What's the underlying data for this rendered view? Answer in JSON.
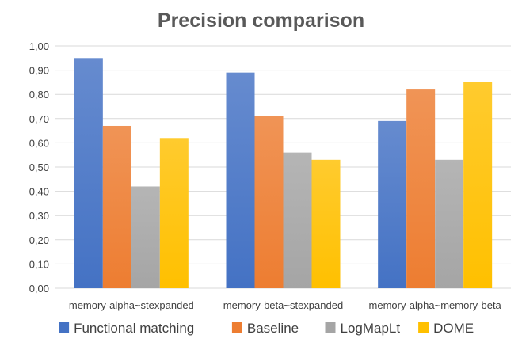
{
  "chart_data": {
    "type": "bar",
    "title": "Precision comparison",
    "xlabel": "",
    "ylabel": "",
    "categories": [
      "memory-alpha~stexpanded",
      "memory-beta~stexpanded",
      "memory-alpha~memory-beta"
    ],
    "series": [
      {
        "name": "Functional matching",
        "values": [
          0.95,
          0.89,
          0.69
        ],
        "color": "#4472C4"
      },
      {
        "name": "Baseline",
        "values": [
          0.67,
          0.71,
          0.82
        ],
        "color": "#ED7D31"
      },
      {
        "name": "LogMapLt",
        "values": [
          0.42,
          0.56,
          0.53
        ],
        "color": "#A5A5A5"
      },
      {
        "name": "DOME",
        "values": [
          0.62,
          0.53,
          0.85
        ],
        "color": "#FFC000"
      }
    ],
    "ylim": [
      0,
      1.0
    ],
    "yticks": [
      "0,00",
      "0,10",
      "0,20",
      "0,30",
      "0,40",
      "0,50",
      "0,60",
      "0,70",
      "0,80",
      "0,90",
      "1,00"
    ],
    "grid": true,
    "legend_position": "bottom"
  }
}
